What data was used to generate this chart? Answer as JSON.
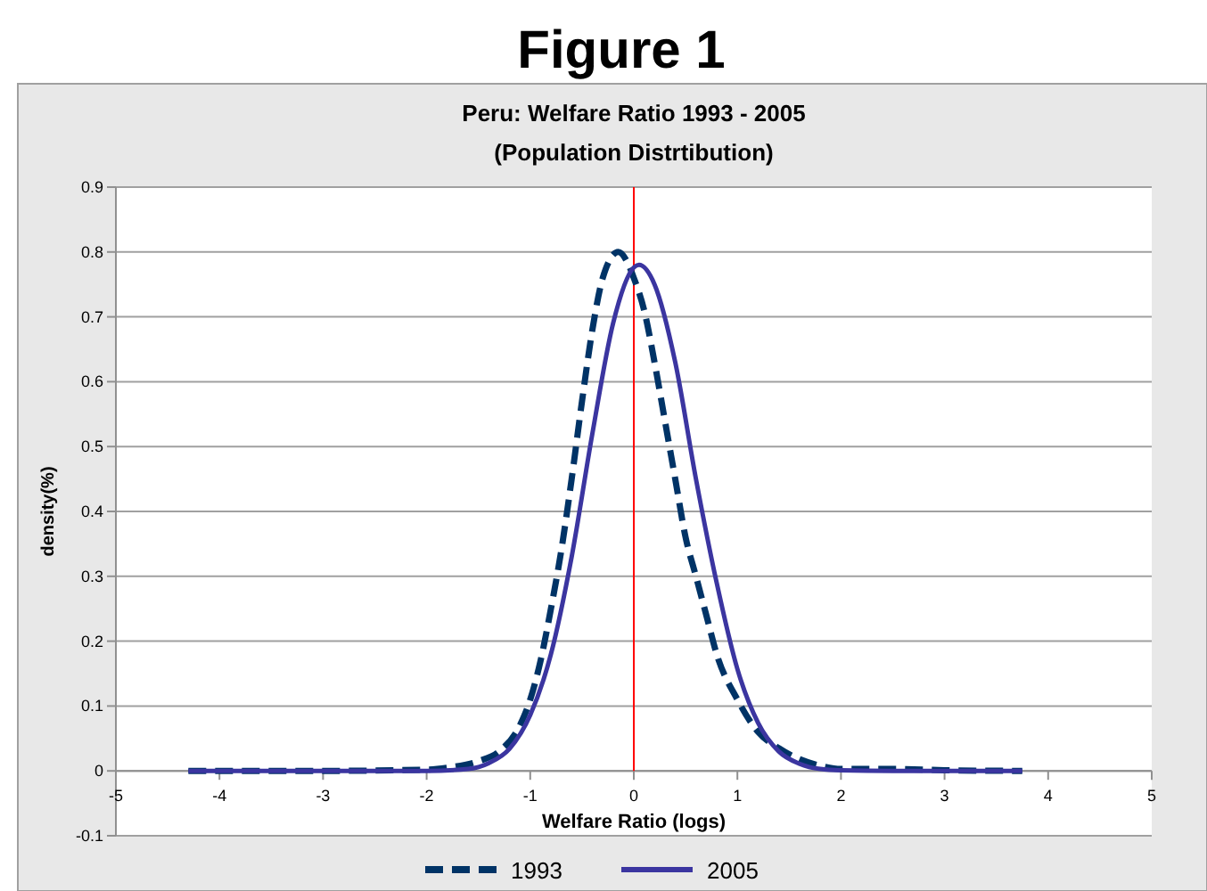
{
  "chart_data": {
    "type": "line",
    "title": "Peru: Welfare Ratio 1993 - 2005",
    "subtitle": "(Population Distrtibution)",
    "annotations": [
      "Figure 1"
    ],
    "xlabel": "Welfare Ratio  (logs)",
    "ylabel": "density(%)",
    "xlim": [
      -5,
      5
    ],
    "xticks": [
      -5,
      -4,
      -3,
      -2,
      -1,
      0,
      1,
      2,
      3,
      4,
      5
    ],
    "ylim": [
      -0.1,
      0.9
    ],
    "yticks": [
      -0.1,
      0,
      0.1,
      0.2,
      0.3,
      0.4,
      0.5,
      0.6,
      0.7,
      0.8,
      0.9
    ],
    "grid": "y",
    "legend": "bottom",
    "ref_lines": [
      {
        "axis": "x",
        "value": 0,
        "color": "#ff0000"
      }
    ],
    "series": [
      {
        "name": "1993",
        "color": "#003366",
        "line_style": "dashed",
        "x": [
          -4.3,
          -3,
          -2,
          -1.8,
          -1.5,
          -1.3,
          -1.1,
          -1.0,
          -0.9,
          -0.8,
          -0.7,
          -0.6,
          -0.5,
          -0.4,
          -0.3,
          -0.15,
          -0.05,
          0,
          0.1,
          0.2,
          0.3,
          0.4,
          0.5,
          0.6,
          0.7,
          0.8,
          1.0,
          1.2,
          1.4,
          1.6,
          1.8,
          2.0,
          2.5,
          3,
          3.75
        ],
        "values": [
          0,
          0,
          0.002,
          0.005,
          0.015,
          0.03,
          0.07,
          0.11,
          0.17,
          0.25,
          0.34,
          0.45,
          0.57,
          0.68,
          0.76,
          0.8,
          0.78,
          0.76,
          0.71,
          0.63,
          0.54,
          0.45,
          0.36,
          0.3,
          0.24,
          0.18,
          0.11,
          0.06,
          0.035,
          0.018,
          0.008,
          0.003,
          0.003,
          0.001,
          0
        ]
      },
      {
        "name": "2005",
        "color": "#3b35a0",
        "line_style": "solid",
        "x": [
          -4.3,
          -3,
          -2,
          -1.6,
          -1.4,
          -1.2,
          -1.0,
          -0.8,
          -0.6,
          -0.4,
          -0.2,
          0,
          0.05,
          0.2,
          0.4,
          0.6,
          0.8,
          1.0,
          1.2,
          1.4,
          1.6,
          1.8,
          2.0,
          2.5,
          3,
          3.75
        ],
        "values": [
          0,
          0,
          0,
          0.003,
          0.012,
          0.034,
          0.086,
          0.18,
          0.33,
          0.52,
          0.69,
          0.776,
          0.78,
          0.75,
          0.63,
          0.45,
          0.29,
          0.157,
          0.074,
          0.03,
          0.011,
          0.003,
          0.001,
          0,
          0,
          0
        ]
      }
    ]
  }
}
